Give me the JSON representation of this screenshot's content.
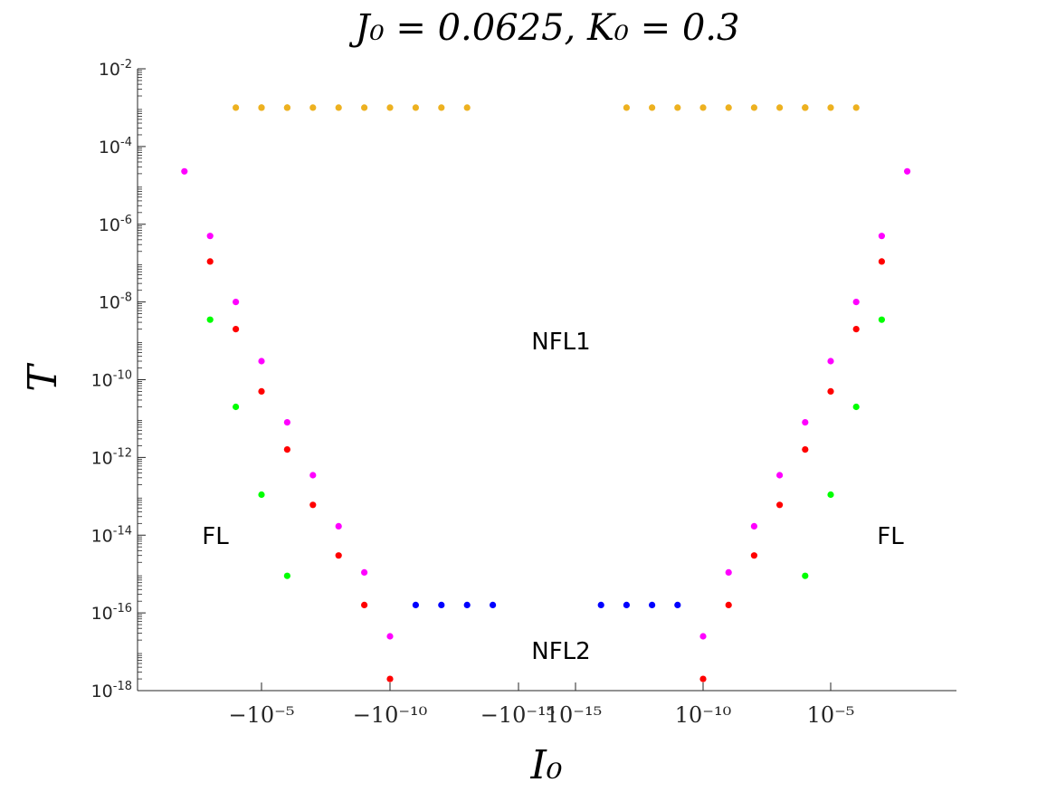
{
  "chart_data": {
    "type": "scatter",
    "title": "J₀ = 0.0625,  K₀ = 0.3",
    "xlabel": "I₀",
    "ylabel": "T",
    "x_scale": "symmetric-log (negative half | positive half)",
    "y_scale": "log",
    "ylim": [
      1e-18,
      0.01
    ],
    "x_tick_labels": [
      "−10⁻⁵",
      "−10⁻¹⁰",
      "−10⁻¹⁵",
      "10⁻¹⁵",
      "10⁻¹⁰",
      "10⁻⁵"
    ],
    "y_ticks": [
      {
        "base": "10",
        "exp": "-2",
        "value": 0.01
      },
      {
        "base": "10",
        "exp": "-4",
        "value": 0.0001
      },
      {
        "base": "10",
        "exp": "-6",
        "value": 1e-06
      },
      {
        "base": "10",
        "exp": "-8",
        "value": 1e-08
      },
      {
        "base": "10",
        "exp": "-10",
        "value": 1e-10
      },
      {
        "base": "10",
        "exp": "-12",
        "value": 1e-12
      },
      {
        "base": "10",
        "exp": "-14",
        "value": 1e-14
      },
      {
        "base": "10",
        "exp": "-16",
        "value": 1e-16
      },
      {
        "base": "10",
        "exp": "-18",
        "value": 1e-18
      }
    ],
    "annotations": [
      "NFL1",
      "FL",
      "FL",
      "NFL2"
    ],
    "grid": false,
    "legend": "none",
    "series": [
      {
        "color": "#EDB120",
        "points": [
          [
            -1e-06,
            0.001
          ],
          [
            -1e-05,
            0.001
          ],
          [
            -0.0001,
            0.001
          ],
          [
            -1e-05,
            0.001
          ],
          [
            -1e-06,
            0.001
          ],
          [
            -1e-07,
            0.001
          ],
          [
            -1e-08,
            0.001
          ],
          [
            -1e-09,
            0.001
          ],
          [
            -1e-10,
            0.001
          ],
          [
            -1e-11,
            0.001
          ],
          [
            -1e-12,
            0.001
          ],
          [
            -1e-13,
            0.001
          ],
          [
            1e-13,
            0.001
          ],
          [
            1e-12,
            0.001
          ],
          [
            1e-11,
            0.001
          ],
          [
            1e-10,
            0.001
          ],
          [
            1e-09,
            0.001
          ],
          [
            1e-08,
            0.001
          ],
          [
            1e-07,
            0.001
          ],
          [
            1e-06,
            0.001
          ],
          [
            1e-05,
            0.001
          ],
          [
            0.0001,
            0.001
          ],
          [
            1e-06,
            0.001
          ],
          [
            1e-06,
            0.001
          ]
        ]
      },
      {
        "color": "#FF00FF",
        "points": [
          [
            -0.01,
            2.3e-05
          ],
          [
            -0.001,
            5e-07
          ],
          [
            -0.0001,
            1e-08
          ],
          [
            -1e-05,
            3e-10
          ],
          [
            -1e-06,
            8e-12
          ],
          [
            -1e-07,
            3.5e-13
          ],
          [
            -1e-08,
            1.7e-14
          ],
          [
            -1e-09,
            1.1e-15
          ],
          [
            -1e-10,
            2.5e-17
          ],
          [
            1e-10,
            2.5e-17
          ],
          [
            1e-09,
            1.1e-15
          ],
          [
            1e-08,
            1.7e-14
          ],
          [
            1e-07,
            3.5e-13
          ],
          [
            1e-06,
            8e-12
          ],
          [
            1e-05,
            3e-10
          ],
          [
            0.0001,
            1e-08
          ],
          [
            0.001,
            5e-07
          ],
          [
            0.01,
            2.3e-05
          ]
        ]
      },
      {
        "color": "#FF0000",
        "points": [
          [
            -0.001,
            1.1e-07
          ],
          [
            -0.0001,
            2e-09
          ],
          [
            -1e-05,
            5e-11
          ],
          [
            -1e-06,
            1.6e-12
          ],
          [
            -1e-07,
            6e-14
          ],
          [
            -1e-08,
            3e-15
          ],
          [
            -1e-09,
            1.6e-16
          ],
          [
            -1e-10,
            2e-18
          ],
          [
            1e-10,
            2e-18
          ],
          [
            1e-09,
            1.6e-16
          ],
          [
            1e-08,
            3e-15
          ],
          [
            1e-07,
            6e-14
          ],
          [
            1e-06,
            1.6e-12
          ],
          [
            1e-05,
            5e-11
          ],
          [
            0.0001,
            2e-09
          ],
          [
            0.001,
            1.1e-07
          ]
        ]
      },
      {
        "color": "#00FF00",
        "points": [
          [
            -0.001,
            3.5e-09
          ],
          [
            -0.0001,
            2e-11
          ],
          [
            -1e-05,
            1.1e-13
          ],
          [
            -1e-06,
            9e-16
          ],
          [
            1e-06,
            9e-16
          ],
          [
            1e-05,
            1.1e-13
          ],
          [
            0.0001,
            2e-11
          ],
          [
            0.001,
            3.5e-09
          ]
        ]
      },
      {
        "color": "#0000FF",
        "points": [
          [
            -1e-11,
            1.6e-16
          ],
          [
            -1e-12,
            1.6e-16
          ],
          [
            -1e-13,
            1.6e-16
          ],
          [
            -1e-14,
            1.6e-16
          ],
          [
            1e-14,
            1.6e-16
          ],
          [
            1e-13,
            1.6e-16
          ],
          [
            1e-12,
            1.6e-16
          ],
          [
            1e-11,
            1.6e-16
          ]
        ]
      }
    ]
  }
}
